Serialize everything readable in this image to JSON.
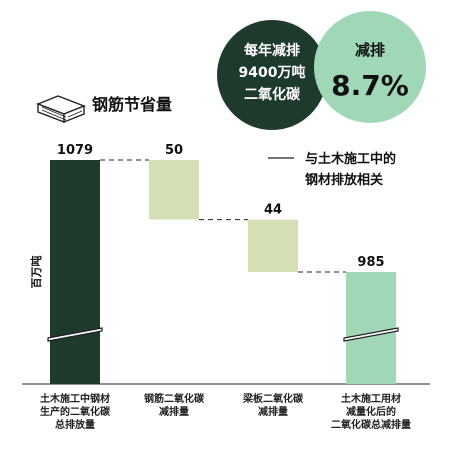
{
  "header": {
    "title": "钢筋节省量"
  },
  "badges": {
    "dark_circle_lines": [
      "每年减排",
      "9400万吨",
      "二氧化碳"
    ],
    "light_circle_label": "减排",
    "light_circle_value": "8.7%",
    "dark_color": "#1e3a2c",
    "light_color": "#9fd7b7"
  },
  "legend": {
    "lines": [
      "与土木施工中的",
      "钢材排放相关"
    ]
  },
  "chart_data": {
    "type": "bar",
    "ylabel": "百万吨",
    "categories": [
      [
        "土木施工中钢材",
        "生产的二氧化碳",
        "总排放量"
      ],
      [
        "钢筋二氧化碳",
        "减排量"
      ],
      [
        "梁板二氧化碳",
        "减排量"
      ],
      [
        "土木施工用材",
        "减量化后的",
        "二氧化碳总减排量"
      ]
    ],
    "bars": [
      {
        "label": "1079",
        "bottom": 0,
        "top": 1079,
        "color": "#1e3a2c",
        "axis_break": true
      },
      {
        "label": "50",
        "bottom": 1029,
        "top": 1079,
        "color": "#d5dfb4",
        "axis_break": false
      },
      {
        "label": "44",
        "bottom": 985,
        "top": 1029,
        "color": "#d5dfb4",
        "axis_break": false
      },
      {
        "label": "985",
        "bottom": 0,
        "top": 985,
        "color": "#9fd7b7",
        "axis_break": true
      }
    ],
    "connectors": true
  }
}
